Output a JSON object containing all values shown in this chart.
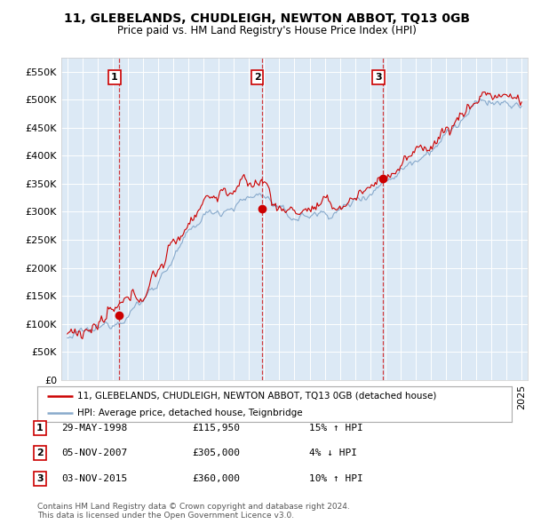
{
  "title1": "11, GLEBELANDS, CHUDLEIGH, NEWTON ABBOT, TQ13 0GB",
  "title2": "Price paid vs. HM Land Registry's House Price Index (HPI)",
  "bg_color": "#dce9f5",
  "line_color_property": "#cc0000",
  "line_color_hpi": "#88aacc",
  "sale_year_vals": [
    1998.42,
    2007.84,
    2015.84
  ],
  "sale_prices": [
    115950,
    305000,
    360000
  ],
  "sale_labels": [
    "1",
    "2",
    "3"
  ],
  "sale_date_strs": [
    "29-MAY-1998",
    "05-NOV-2007",
    "03-NOV-2015"
  ],
  "sale_price_strs": [
    "£115,950",
    "£305,000",
    "£360,000"
  ],
  "sale_hpi_strs": [
    "15% ↑ HPI",
    "4% ↓ HPI",
    "10% ↑ HPI"
  ],
  "ylim": [
    0,
    575000
  ],
  "yticks": [
    0,
    50000,
    100000,
    150000,
    200000,
    250000,
    300000,
    350000,
    400000,
    450000,
    500000,
    550000
  ],
  "xlim_left": 1994.6,
  "xlim_right": 2025.4,
  "legend_property": "11, GLEBELANDS, CHUDLEIGH, NEWTON ABBOT, TQ13 0GB (detached house)",
  "legend_hpi": "HPI: Average price, detached house, Teignbridge",
  "footer": "Contains HM Land Registry data © Crown copyright and database right 2024.\nThis data is licensed under the Open Government Licence v3.0."
}
